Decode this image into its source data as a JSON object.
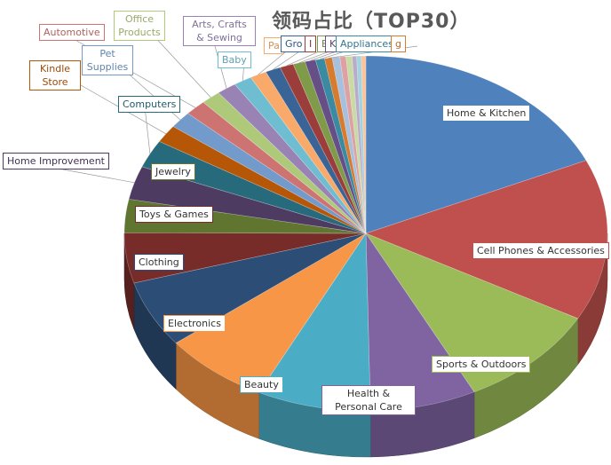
{
  "chart_data": {
    "type": "pie",
    "style": "3d-exploded-none",
    "title": "领码占比（TOP30）",
    "categories": [
      "Home & Kitchen",
      "Cell Phones & Accessories",
      "Sports & Outdoors",
      "Health & Personal Care",
      "Beauty",
      "Electronics",
      "Clothing",
      "Toys & Games",
      "Jewelry",
      "Home Improvement",
      "Computers",
      "Kindle Store",
      "Pet Supplies",
      "Automotive",
      "Office Products",
      "Arts, Crafts & Sewing",
      "Baby",
      "Pa",
      "Gro",
      "I",
      "E",
      "Kit",
      "Appliances",
      "g",
      "",
      "",
      "",
      "",
      "",
      ""
    ],
    "values": [
      18,
      14.5,
      9.5,
      7,
      7.5,
      7,
      6,
      4.5,
      3,
      3,
      2.5,
      1.6,
      1.5,
      1.4,
      1.3,
      1.3,
      1.2,
      1.1,
      1.0,
      0.9,
      0.8,
      0.7,
      0.6,
      0.5,
      0.5,
      0.4,
      0.4,
      0.3,
      0.3,
      0.3
    ],
    "unit": "percent (estimated)",
    "colors": [
      "#4F81BD",
      "#C0504D",
      "#9BBB59",
      "#8064A2",
      "#4BACC6",
      "#F79646",
      "#2C4D75",
      "#772C2A",
      "#5F7530",
      "#4D3B62",
      "#276A7C",
      "#B65708",
      "#729ACA",
      "#CD7371",
      "#AFC97A",
      "#9983B5",
      "#6FBDD1",
      "#F9AA6B",
      "#3A6496",
      "#9B3D3B",
      "#7F9A48",
      "#664F87",
      "#3A8BA2",
      "#D77B2E",
      "#A7C0DE",
      "#DCA1A0",
      "#C8DBA4",
      "#B9ACCB",
      "#A1D3E0",
      "#FBC49A"
    ],
    "legend": "none",
    "data_labels": "category names in callout boxes"
  }
}
